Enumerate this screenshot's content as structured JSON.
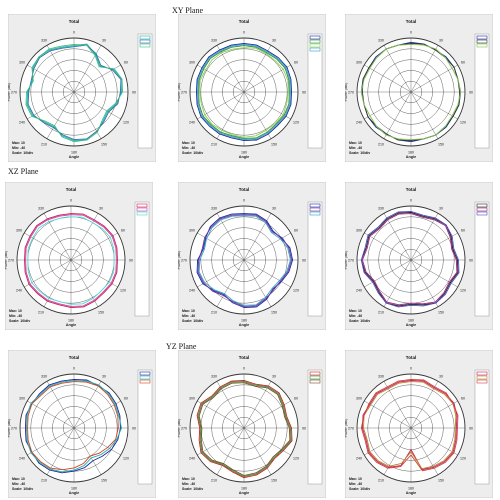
{
  "planes": [
    "XY Plane",
    "XZ Plane",
    "YZ Plane"
  ],
  "plot_labels": {
    "title": "Total",
    "ylabel": "Power (dBi)",
    "xlabel": "Angle",
    "max_label": "Max: 10",
    "min_label": "Min: -40",
    "scale_label": "Scale: 10/div"
  },
  "colors": {
    "panel_bg": "#ededed",
    "grid": "#333333",
    "legend_bg": "#ffffff"
  },
  "chart_data": [
    {
      "type": "polar",
      "plane": "XY Plane",
      "panel": 1,
      "title": "Total",
      "xlabel": "Angle",
      "ylabel": "Power (dBi)",
      "theta_ticks": [
        0,
        30,
        60,
        90,
        120,
        150,
        180,
        210,
        240,
        270,
        300,
        330
      ],
      "r_range": [
        -40,
        10
      ],
      "r_step": 10,
      "grid": true,
      "legend_position": "right",
      "series": [
        {
          "color": "#20b0a8",
          "r": [
            3,
            6,
            0,
            -6,
            2,
            6,
            4,
            1,
            -4,
            -2,
            3,
            6,
            5,
            2,
            -3,
            -1,
            4,
            5,
            3,
            0,
            4,
            6,
            5,
            3
          ]
        },
        {
          "color": "#2a6db0",
          "r": [
            2,
            5,
            1,
            -5,
            1,
            5,
            3,
            2,
            -3,
            -1,
            2,
            5,
            4,
            1,
            -2,
            0,
            3,
            4,
            2,
            1,
            3,
            5,
            4,
            2
          ]
        },
        {
          "color": "#3fbf7f",
          "r": [
            4,
            5,
            -1,
            -7,
            3,
            6,
            5,
            0,
            -5,
            -3,
            3,
            6,
            6,
            3,
            -4,
            -2,
            5,
            6,
            4,
            -1,
            5,
            6,
            6,
            4
          ]
        }
      ]
    },
    {
      "type": "polar",
      "plane": "XY Plane",
      "panel": 2,
      "title": "Total",
      "xlabel": "Angle",
      "ylabel": "Power (dBi)",
      "theta_ticks": [
        0,
        30,
        60,
        90,
        120,
        150,
        180,
        210,
        240,
        270,
        300,
        330
      ],
      "r_range": [
        -40,
        10
      ],
      "r_step": 10,
      "grid": true,
      "legend_position": "top-right",
      "series": [
        {
          "color": "#1a2aa0",
          "r": [
            5,
            5,
            4,
            5,
            6,
            5,
            4,
            5,
            5,
            4,
            5,
            6,
            5,
            4,
            5,
            5,
            6,
            5,
            4,
            5,
            5,
            6,
            5,
            5
          ]
        },
        {
          "color": "#2e8b3a",
          "r": [
            3,
            3,
            2,
            3,
            4,
            3,
            2,
            3,
            3,
            2,
            3,
            4,
            3,
            2,
            3,
            3,
            4,
            3,
            2,
            3,
            3,
            4,
            3,
            3
          ]
        },
        {
          "color": "#8ad04a",
          "r": [
            1,
            2,
            1,
            1,
            2,
            2,
            1,
            1,
            2,
            1,
            1,
            2,
            2,
            1,
            1,
            2,
            2,
            1,
            1,
            2,
            1,
            2,
            2,
            1
          ]
        },
        {
          "color": "#30a0c8",
          "r": [
            4,
            4,
            3,
            4,
            5,
            4,
            3,
            4,
            4,
            3,
            4,
            5,
            4,
            3,
            4,
            4,
            5,
            4,
            3,
            4,
            4,
            5,
            4,
            4
          ]
        }
      ]
    },
    {
      "type": "polar",
      "plane": "XY Plane",
      "panel": 3,
      "title": "Total",
      "xlabel": "Angle",
      "ylabel": "Power (dBi)",
      "theta_ticks": [
        0,
        30,
        60,
        90,
        120,
        150,
        180,
        210,
        240,
        270,
        300,
        330
      ],
      "r_range": [
        -40,
        10
      ],
      "r_step": 10,
      "grid": true,
      "legend_position": "top-right",
      "series": [
        {
          "color": "#1a2aa0",
          "r": [
            6,
            6,
            5,
            6,
            6,
            5,
            6,
            6,
            5,
            6,
            6,
            5,
            6,
            6,
            5,
            6,
            6,
            5,
            6,
            6,
            5,
            6,
            6,
            5
          ]
        },
        {
          "color": "#333333",
          "r": [
            5,
            6,
            5,
            5,
            6,
            5,
            5,
            6,
            5,
            5,
            6,
            5,
            5,
            6,
            5,
            5,
            6,
            5,
            5,
            6,
            5,
            5,
            6,
            5
          ]
        },
        {
          "color": "#7fc04a",
          "r": [
            4,
            5,
            6,
            5,
            4,
            5,
            6,
            5,
            4,
            5,
            6,
            5,
            4,
            5,
            6,
            5,
            4,
            5,
            6,
            5,
            4,
            5,
            6,
            5
          ]
        }
      ]
    },
    {
      "type": "polar",
      "plane": "XZ Plane",
      "panel": 1,
      "title": "Total",
      "xlabel": "Angle",
      "ylabel": "Power (dBi)",
      "theta_ticks": [
        0,
        30,
        60,
        90,
        120,
        150,
        180,
        210,
        240,
        270,
        300,
        330
      ],
      "r_range": [
        -40,
        10
      ],
      "r_step": 10,
      "grid": true,
      "legend_position": "top-right",
      "series": [
        {
          "color": "#d02040",
          "r": [
            3,
            4,
            3,
            4,
            5,
            4,
            3,
            4,
            4,
            3,
            4,
            5,
            4,
            3,
            4,
            4,
            5,
            4,
            3,
            4,
            4,
            5,
            4,
            3
          ]
        },
        {
          "color": "#c040c0",
          "r": [
            2,
            3,
            2,
            3,
            4,
            3,
            2,
            3,
            3,
            2,
            3,
            4,
            3,
            2,
            3,
            3,
            4,
            3,
            2,
            3,
            3,
            4,
            3,
            2
          ]
        },
        {
          "color": "#50d8c8",
          "r": [
            0,
            1,
            0,
            1,
            2,
            1,
            0,
            1,
            1,
            0,
            1,
            2,
            1,
            0,
            1,
            1,
            2,
            1,
            0,
            1,
            1,
            2,
            1,
            0
          ]
        }
      ]
    },
    {
      "type": "polar",
      "plane": "XZ Plane",
      "panel": 2,
      "title": "Total",
      "xlabel": "Angle",
      "ylabel": "Power (dBi)",
      "theta_ticks": [
        0,
        30,
        60,
        90,
        120,
        150,
        180,
        210,
        240,
        270,
        300,
        330
      ],
      "r_range": [
        -40,
        10
      ],
      "r_step": 10,
      "grid": true,
      "legend_position": "top-right",
      "series": [
        {
          "color": "#1a2aa0",
          "r": [
            3,
            4,
            2,
            -2,
            0,
            4,
            5,
            3,
            0,
            -2,
            2,
            5,
            4,
            1,
            -3,
            0,
            4,
            5,
            3,
            -1,
            1,
            4,
            5,
            4
          ]
        },
        {
          "color": "#7030a0",
          "r": [
            2,
            3,
            1,
            -3,
            1,
            3,
            4,
            2,
            -1,
            -1,
            1,
            4,
            3,
            0,
            -2,
            1,
            3,
            4,
            2,
            0,
            2,
            3,
            4,
            3
          ]
        },
        {
          "color": "#30a0c8",
          "r": [
            1,
            2,
            0,
            -4,
            -1,
            2,
            3,
            1,
            -2,
            -3,
            0,
            3,
            2,
            -1,
            -4,
            -1,
            2,
            3,
            1,
            -2,
            0,
            2,
            3,
            2
          ]
        }
      ]
    },
    {
      "type": "polar",
      "plane": "XZ Plane",
      "panel": 3,
      "title": "Total",
      "xlabel": "Angle",
      "ylabel": "Power (dBi)",
      "theta_ticks": [
        0,
        30,
        60,
        90,
        120,
        150,
        180,
        210,
        240,
        270,
        300,
        330
      ],
      "r_range": [
        -40,
        10
      ],
      "r_step": 10,
      "grid": true,
      "legend_position": "top-right",
      "series": [
        {
          "color": "#202020",
          "r": [
            4,
            2,
            4,
            6,
            3,
            0,
            3,
            5,
            2,
            4,
            6,
            3,
            1,
            4,
            6,
            2,
            0,
            4,
            6,
            3,
            5,
            2,
            4,
            5
          ]
        },
        {
          "color": "#a02080",
          "r": [
            3,
            1,
            3,
            5,
            2,
            -1,
            2,
            4,
            1,
            3,
            5,
            2,
            0,
            3,
            5,
            1,
            -1,
            3,
            5,
            2,
            4,
            1,
            3,
            4
          ]
        },
        {
          "color": "#5050c0",
          "r": [
            5,
            3,
            5,
            6,
            4,
            1,
            4,
            6,
            3,
            5,
            6,
            4,
            2,
            5,
            6,
            3,
            1,
            5,
            6,
            4,
            6,
            3,
            5,
            6
          ]
        }
      ]
    },
    {
      "type": "polar",
      "plane": "YZ Plane",
      "panel": 1,
      "title": "Total",
      "xlabel": "Angle",
      "ylabel": "Power (dBi)",
      "theta_ticks": [
        0,
        30,
        60,
        90,
        120,
        150,
        180,
        210,
        240,
        270,
        300,
        330
      ],
      "r_range": [
        -40,
        10
      ],
      "r_step": 10,
      "grid": true,
      "legend_position": "top-right",
      "series": [
        {
          "color": "#1a2aa0",
          "r": [
            5,
            6,
            5,
            6,
            5,
            4,
            3,
            2,
            0,
            -3,
            -5,
            -2,
            0,
            3,
            5,
            6,
            5,
            6,
            5,
            6,
            5,
            5,
            6,
            5
          ]
        },
        {
          "color": "#20b0a8",
          "r": [
            4,
            5,
            6,
            5,
            4,
            3,
            4,
            1,
            -2,
            -5,
            -8,
            -4,
            -1,
            2,
            4,
            5,
            6,
            5,
            4,
            5,
            6,
            4,
            5,
            4
          ]
        },
        {
          "color": "#d04020",
          "r": [
            3,
            4,
            5,
            4,
            3,
            2,
            1,
            0,
            -4,
            -7,
            -10,
            -6,
            -3,
            0,
            3,
            4,
            5,
            4,
            3,
            4,
            5,
            3,
            4,
            3
          ]
        }
      ]
    },
    {
      "type": "polar",
      "plane": "YZ Plane",
      "panel": 2,
      "title": "Total",
      "xlabel": "Angle",
      "ylabel": "Power (dBi)",
      "theta_ticks": [
        0,
        30,
        60,
        90,
        120,
        150,
        180,
        210,
        240,
        270,
        300,
        330
      ],
      "r_range": [
        -40,
        10
      ],
      "r_step": 10,
      "grid": true,
      "legend_position": "top-right",
      "series": [
        {
          "color": "#d02020",
          "r": [
            4,
            2,
            5,
            6,
            3,
            1,
            4,
            6,
            2,
            0,
            3,
            5,
            6,
            2,
            0,
            4,
            6,
            3,
            1,
            5,
            6,
            2,
            4,
            5
          ]
        },
        {
          "color": "#2e8b3a",
          "r": [
            3,
            1,
            4,
            5,
            2,
            0,
            3,
            5,
            1,
            -1,
            2,
            4,
            5,
            1,
            -1,
            3,
            5,
            2,
            0,
            4,
            5,
            1,
            3,
            4
          ]
        },
        {
          "color": "#7a5020",
          "r": [
            2,
            0,
            3,
            4,
            1,
            -1,
            2,
            4,
            0,
            -2,
            1,
            3,
            4,
            0,
            -2,
            2,
            4,
            1,
            -1,
            3,
            4,
            0,
            2,
            3
          ]
        }
      ]
    },
    {
      "type": "polar",
      "plane": "YZ Plane",
      "panel": 3,
      "title": "Total",
      "xlabel": "Angle",
      "ylabel": "Power (dBi)",
      "theta_ticks": [
        0,
        30,
        60,
        90,
        120,
        150,
        180,
        210,
        240,
        270,
        300,
        330
      ],
      "r_range": [
        -40,
        10
      ],
      "r_step": 10,
      "grid": true,
      "legend_position": "top-right",
      "series": [
        {
          "color": "#c02060",
          "r": [
            4,
            5,
            3,
            5,
            6,
            4,
            2,
            3,
            5,
            4,
            2,
            0,
            -20,
            -4,
            2,
            4,
            5,
            3,
            5,
            6,
            4,
            5,
            3,
            4
          ]
        },
        {
          "color": "#c08020",
          "r": [
            3,
            4,
            2,
            4,
            5,
            3,
            1,
            2,
            4,
            3,
            1,
            -1,
            -18,
            -6,
            1,
            3,
            4,
            2,
            4,
            5,
            3,
            4,
            2,
            3
          ]
        },
        {
          "color": "#d04040",
          "r": [
            5,
            6,
            4,
            6,
            5,
            5,
            3,
            4,
            6,
            5,
            3,
            1,
            -15,
            -3,
            3,
            5,
            6,
            4,
            6,
            5,
            5,
            6,
            4,
            5
          ]
        }
      ]
    }
  ]
}
